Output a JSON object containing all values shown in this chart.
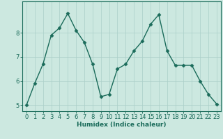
{
  "x": [
    0,
    1,
    2,
    3,
    4,
    5,
    6,
    7,
    8,
    9,
    10,
    11,
    12,
    13,
    14,
    15,
    16,
    17,
    18,
    19,
    20,
    21,
    22,
    23
  ],
  "y": [
    5.0,
    5.9,
    6.7,
    7.9,
    8.2,
    8.8,
    8.1,
    7.6,
    6.7,
    5.35,
    5.45,
    6.5,
    6.7,
    7.25,
    7.65,
    8.35,
    8.75,
    7.25,
    6.65,
    6.65,
    6.65,
    6.0,
    5.45,
    5.05
  ],
  "line_color": "#1a6b5a",
  "marker": "D",
  "marker_size": 2.5,
  "linewidth": 1.0,
  "xlabel": "Humidex (Indice chaleur)",
  "bg_color": "#cce8e0",
  "grid_color": "#aacfc8",
  "axis_color": "#1a6b5a",
  "xlim": [
    -0.5,
    23.5
  ],
  "ylim": [
    4.75,
    9.3
  ],
  "yticks": [
    5,
    6,
    7,
    8
  ],
  "xticks": [
    0,
    1,
    2,
    3,
    4,
    5,
    6,
    7,
    8,
    9,
    10,
    11,
    12,
    13,
    14,
    15,
    16,
    17,
    18,
    19,
    20,
    21,
    22,
    23
  ],
  "xlabel_fontsize": 6.5,
  "tick_fontsize": 6.0
}
